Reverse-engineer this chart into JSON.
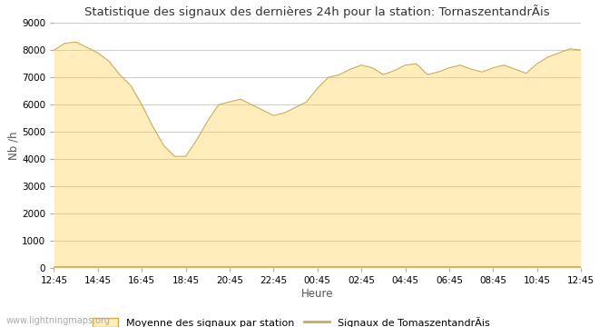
{
  "title": "Statistique des signaux des dernières 24h pour la station: TornaszentandrÃis",
  "xlabel": "Heure",
  "ylabel": "Nb /h",
  "watermark": "www.lightningmaps.org",
  "ylim": [
    0,
    9000
  ],
  "yticks": [
    0,
    1000,
    2000,
    3000,
    4000,
    5000,
    6000,
    7000,
    8000,
    9000
  ],
  "xtick_labels": [
    "12:45",
    "14:45",
    "16:45",
    "18:45",
    "20:45",
    "22:45",
    "00:45",
    "02:45",
    "04:45",
    "06:45",
    "08:45",
    "10:45",
    "12:45"
  ],
  "fill_color": "#ffeebb",
  "fill_edge_color": "#ccaa55",
  "line_color": "#ccaa55",
  "background_color": "#ffffff",
  "grid_color": "#cccccc",
  "legend_fill_label": "Moyenne des signaux par station",
  "legend_line_label": "Signaux de TomaszentandrÃis",
  "x_values": [
    0,
    2,
    4,
    6,
    8,
    10,
    12,
    14,
    16,
    18,
    20,
    22,
    24,
    26,
    28,
    30,
    32,
    34,
    36,
    38,
    40,
    42,
    44,
    46,
    48,
    50,
    52,
    54,
    56,
    58,
    60,
    62,
    64,
    66,
    68,
    70,
    72,
    74,
    76,
    78,
    80,
    82,
    84,
    86,
    88,
    90,
    92,
    94,
    96
  ],
  "y_mean": [
    8000,
    8250,
    8300,
    8100,
    7900,
    7600,
    7100,
    6700,
    6000,
    5200,
    4500,
    4100,
    4100,
    4700,
    5400,
    6000,
    6100,
    6200,
    6000,
    5800,
    5600,
    5700,
    5900,
    6100,
    6600,
    7000,
    7100,
    7300,
    7450,
    7350,
    7100,
    7250,
    7450,
    7500,
    7100,
    7200,
    7350,
    7450,
    7300,
    7200,
    7350,
    7450,
    7300,
    7150,
    7500,
    7750,
    7900,
    8050,
    8000
  ],
  "y_station": [
    50,
    50,
    50,
    50,
    50,
    50,
    50,
    50,
    50,
    50,
    50,
    50,
    50,
    50,
    50,
    50,
    50,
    50,
    50,
    50,
    50,
    50,
    50,
    50,
    50,
    50,
    50,
    50,
    50,
    50,
    50,
    50,
    50,
    50,
    50,
    50,
    50,
    50,
    50,
    50,
    50,
    50,
    50,
    50,
    50,
    50,
    50,
    50,
    50
  ]
}
